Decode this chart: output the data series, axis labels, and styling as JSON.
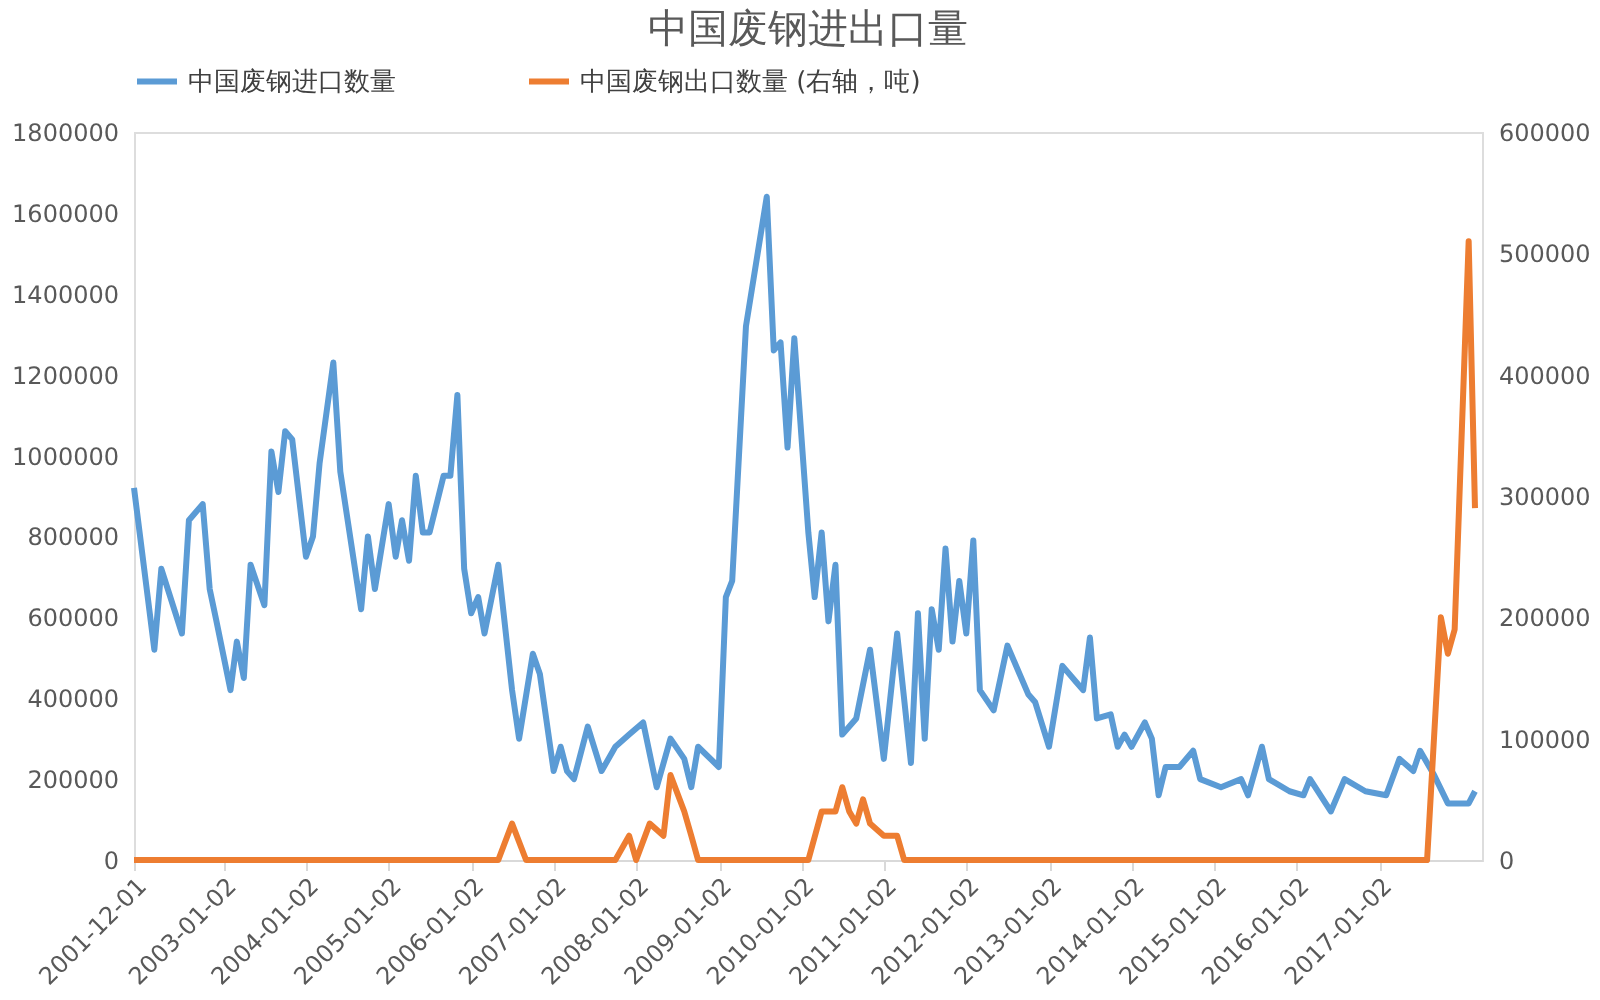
{
  "chart_data": {
    "type": "line",
    "title": "中国废钢进出口量",
    "xlim": [
      "2001-12-01",
      "2018-04-01"
    ],
    "xticks": [
      "2001-12-01",
      "2003-01-02",
      "2004-01-02",
      "2005-01-02",
      "2006-01-02",
      "2007-01-02",
      "2008-01-02",
      "2009-01-02",
      "2010-01-02",
      "2011-01-02",
      "2012-01-02",
      "2013-01-02",
      "2014-01-02",
      "2015-01-02",
      "2016-01-02",
      "2017-01-02"
    ],
    "ylim": [
      0,
      1800000
    ],
    "yticks": [
      0,
      200000,
      400000,
      600000,
      800000,
      1000000,
      1200000,
      1400000,
      1600000,
      1800000
    ],
    "y2lim": [
      0,
      600000
    ],
    "y2ticks": [
      0,
      100000,
      200000,
      300000,
      400000,
      500000,
      600000
    ],
    "legend": "top",
    "grid": false,
    "series": [
      {
        "name": "中国废钢进口数量",
        "color": "#5b9bd5",
        "x": [
          "2001-12",
          "2002-03",
          "2002-04",
          "2002-07",
          "2002-08",
          "2002-10",
          "2002-11",
          "2002-12",
          "2003-02",
          "2003-03",
          "2003-04",
          "2003-05",
          "2003-07",
          "2003-08",
          "2003-09",
          "2003-10",
          "2003-11",
          "2004-01",
          "2004-02",
          "2004-03",
          "2004-05",
          "2004-06",
          "2004-09",
          "2004-10",
          "2004-11",
          "2005-01",
          "2005-02",
          "2005-03",
          "2005-04",
          "2005-05",
          "2005-06",
          "2005-07",
          "2005-09",
          "2005-10",
          "2005-11",
          "2005-12",
          "2006-01",
          "2006-02",
          "2006-03",
          "2006-05",
          "2006-07",
          "2006-08",
          "2006-10",
          "2006-11",
          "2007-01",
          "2007-02",
          "2007-03",
          "2007-04",
          "2007-06",
          "2007-08",
          "2007-10",
          "2007-12",
          "2008-02",
          "2008-04",
          "2008-06",
          "2008-08",
          "2008-09",
          "2008-10",
          "2009-01",
          "2009-02",
          "2009-03",
          "2009-05",
          "2009-08",
          "2009-09",
          "2009-10",
          "2009-11",
          "2009-12",
          "2010-02",
          "2010-03",
          "2010-04",
          "2010-05",
          "2010-06",
          "2010-07",
          "2010-09",
          "2010-11",
          "2011-01",
          "2011-03",
          "2011-05",
          "2011-06",
          "2011-07",
          "2011-08",
          "2011-09",
          "2011-10",
          "2011-11",
          "2011-12",
          "2012-01",
          "2012-02",
          "2012-03",
          "2012-05",
          "2012-07",
          "2012-10",
          "2012-11",
          "2013-01",
          "2013-03",
          "2013-05",
          "2013-06",
          "2013-07",
          "2013-08",
          "2013-10",
          "2013-11",
          "2013-12",
          "2014-01",
          "2014-03",
          "2014-04",
          "2014-05",
          "2014-06",
          "2014-08",
          "2014-10",
          "2014-11",
          "2015-02",
          "2015-05",
          "2015-06",
          "2015-08",
          "2015-09",
          "2015-12",
          "2016-02",
          "2016-03",
          "2016-06",
          "2016-08",
          "2016-11",
          "2017-02",
          "2017-04",
          "2017-06",
          "2017-07",
          "2017-09",
          "2017-11",
          "2018-02",
          "2018-03"
        ],
        "values": [
          920000,
          520000,
          720000,
          560000,
          840000,
          880000,
          670000,
          590000,
          420000,
          540000,
          450000,
          730000,
          630000,
          1010000,
          910000,
          1060000,
          1040000,
          750000,
          800000,
          980000,
          1230000,
          960000,
          620000,
          800000,
          670000,
          880000,
          750000,
          840000,
          740000,
          950000,
          810000,
          810000,
          950000,
          950000,
          1150000,
          720000,
          610000,
          650000,
          560000,
          730000,
          420000,
          300000,
          510000,
          460000,
          220000,
          280000,
          220000,
          200000,
          330000,
          220000,
          280000,
          310000,
          340000,
          180000,
          300000,
          250000,
          180000,
          280000,
          230000,
          650000,
          690000,
          1320000,
          1640000,
          1260000,
          1280000,
          1020000,
          1290000,
          810000,
          650000,
          810000,
          590000,
          730000,
          310000,
          350000,
          520000,
          250000,
          560000,
          240000,
          610000,
          300000,
          620000,
          520000,
          770000,
          540000,
          690000,
          560000,
          790000,
          420000,
          370000,
          530000,
          410000,
          390000,
          280000,
          480000,
          440000,
          420000,
          550000,
          350000,
          360000,
          280000,
          310000,
          280000,
          340000,
          300000,
          160000,
          230000,
          230000,
          270000,
          200000,
          180000,
          200000,
          160000,
          280000,
          200000,
          170000,
          160000,
          200000,
          120000,
          200000,
          170000,
          160000,
          250000,
          220000,
          270000,
          210000,
          140000,
          140000,
          170000
        ]
      },
      {
        "name": "中国废钢出口数量 (右轴，吨)",
        "color": "#ed7d31",
        "axis": "y2",
        "x": [
          "2001-12",
          "2006-05",
          "2006-07",
          "2006-09",
          "2007-10",
          "2007-12",
          "2008-01",
          "2008-03",
          "2008-05",
          "2008-06",
          "2008-08",
          "2008-09",
          "2008-10",
          "2010-02",
          "2010-04",
          "2010-06",
          "2010-07",
          "2010-08",
          "2010-09",
          "2010-10",
          "2010-11",
          "2011-01",
          "2011-03",
          "2011-04",
          "2017-08",
          "2017-10",
          "2017-11",
          "2017-12",
          "2018-02",
          "2018-03"
        ],
        "values": [
          0,
          0,
          30000,
          0,
          0,
          20000,
          0,
          30000,
          20000,
          70000,
          40000,
          20000,
          0,
          0,
          40000,
          40000,
          60000,
          40000,
          30000,
          50000,
          30000,
          20000,
          20000,
          0,
          0,
          200000,
          170000,
          190000,
          510000,
          290000
        ]
      }
    ]
  }
}
